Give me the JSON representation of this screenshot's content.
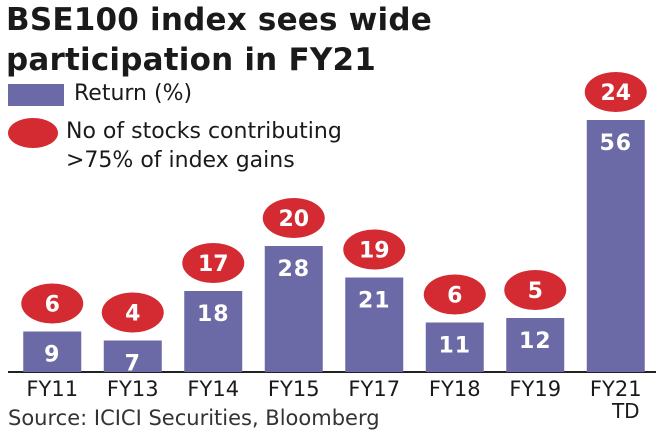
{
  "chart_data": {
    "type": "bar",
    "title_lines": [
      "BSE100 index sees wide",
      "participation in FY21"
    ],
    "categories": [
      "FY11",
      "FY13",
      "FY14",
      "FY15",
      "FY17",
      "FY18",
      "FY19",
      "FY21"
    ],
    "category_sublabels": [
      "",
      "",
      "",
      "",
      "",
      "",
      "",
      "TD"
    ],
    "series": [
      {
        "name": "Return (%)",
        "values": [
          9,
          7,
          18,
          28,
          21,
          11,
          12,
          56
        ]
      },
      {
        "name": "No of stocks contributing >75% of index gains",
        "values": [
          6,
          4,
          17,
          20,
          19,
          6,
          5,
          24
        ]
      }
    ],
    "legend": {
      "bar_label": "Return (%)",
      "dot_label_line1": "No of stocks contributing",
      "dot_label_line2": ">75% of index gains"
    },
    "ylim": [
      0,
      60
    ],
    "grid": false,
    "colors": {
      "bar": "#6b6aa6",
      "dot": "#d42a32",
      "bar_text": "#ffffff",
      "axis": "#222222"
    }
  },
  "source": "Source: ICICI Securities, Bloomberg"
}
